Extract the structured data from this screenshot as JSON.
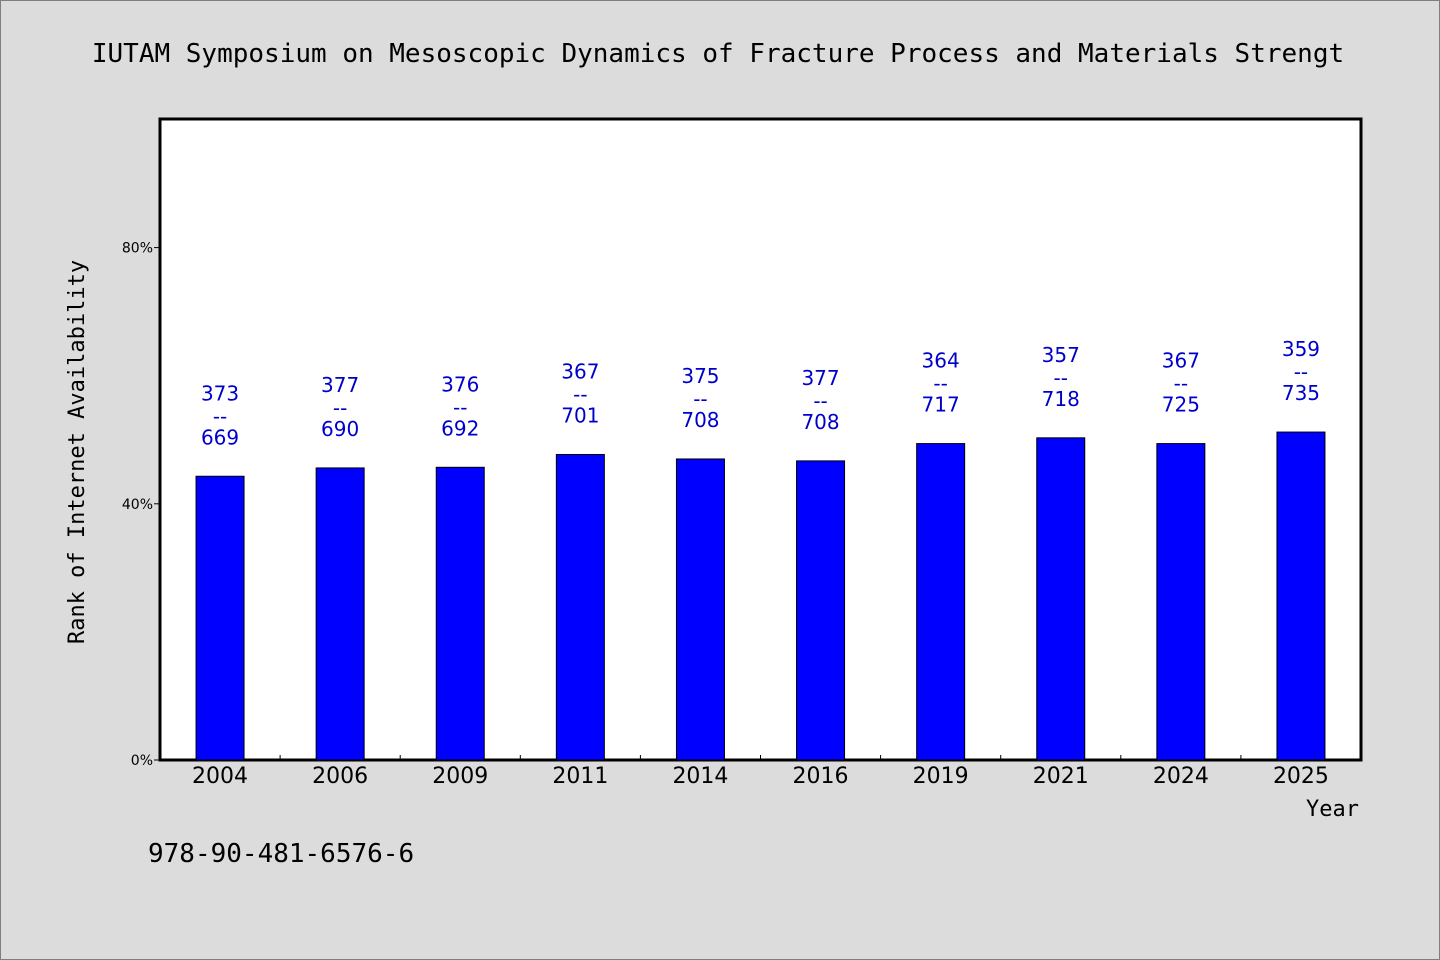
{
  "chart_data": {
    "type": "bar",
    "title": "IUTAM Symposium on Mesoscopic Dynamics of Fracture Process and Materials Strengt",
    "ylabel": "Rank of Internet Availability",
    "xlabel": "Year",
    "categories": [
      "2004",
      "2006",
      "2009",
      "2011",
      "2014",
      "2016",
      "2019",
      "2021",
      "2024",
      "2025"
    ],
    "values": [
      44.3,
      45.6,
      45.7,
      47.7,
      47.0,
      46.7,
      49.4,
      50.3,
      49.4,
      51.2
    ],
    "data_labels": [
      {
        "top": "373",
        "mid": "--",
        "bottom": "669"
      },
      {
        "top": "377",
        "mid": "--",
        "bottom": "690"
      },
      {
        "top": "376",
        "mid": "--",
        "bottom": "692"
      },
      {
        "top": "367",
        "mid": "--",
        "bottom": "701"
      },
      {
        "top": "375",
        "mid": "--",
        "bottom": "708"
      },
      {
        "top": "377",
        "mid": "--",
        "bottom": "708"
      },
      {
        "top": "364",
        "mid": "--",
        "bottom": "717"
      },
      {
        "top": "357",
        "mid": "--",
        "bottom": "718"
      },
      {
        "top": "367",
        "mid": "--",
        "bottom": "725"
      },
      {
        "top": "359",
        "mid": "--",
        "bottom": "735"
      }
    ],
    "yticks": [
      {
        "value": 0,
        "label": "0%"
      },
      {
        "value": 40,
        "label": "40%"
      },
      {
        "value": 80,
        "label": "80%"
      }
    ],
    "ylim": [
      0,
      100
    ],
    "grid": false,
    "colors": {
      "bar": "#0000ff",
      "bar_stroke": "#000000",
      "label": "#0000cc"
    }
  },
  "footnote": "978-90-481-6576-6"
}
